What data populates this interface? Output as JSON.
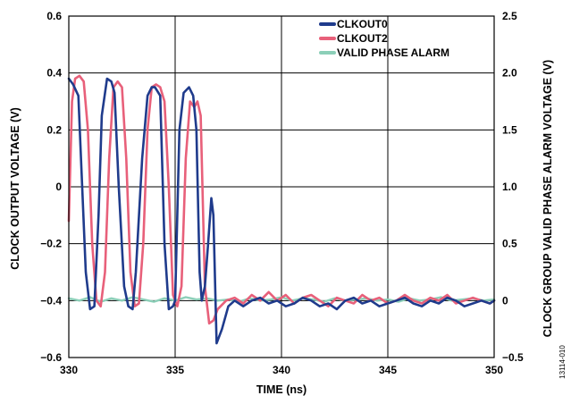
{
  "chart_data": {
    "type": "line",
    "xlabel": "TIME (ns)",
    "ylabel": "CLOCK OUTPUT VOLTAGE (V)",
    "y2label": "CLOCK GROUP VALID PHASE ALARM VOLTAGE (V)",
    "figure_id": "13114-010",
    "xlim": [
      330,
      350
    ],
    "ylim": [
      -0.6,
      0.6
    ],
    "y2lim": [
      -0.5,
      2.5
    ],
    "x_ticks": [
      "330",
      "335",
      "340",
      "345",
      "350"
    ],
    "y_ticks": [
      "0.6",
      "0.4",
      "0.2",
      "0",
      "−0.2",
      "−0.4",
      "−0.6"
    ],
    "y2_ticks": [
      "2.5",
      "2.0",
      "1.5",
      "1.0",
      "0.5",
      "0",
      "−0.5"
    ],
    "grid": true,
    "legend_position": "top-right",
    "series": [
      {
        "name": "CLKOUT0",
        "color": "#1f3b8c",
        "axis": "left",
        "x": [
          330.0,
          330.2,
          330.45,
          330.6,
          330.8,
          331.0,
          331.2,
          331.4,
          331.55,
          331.8,
          332.0,
          332.15,
          332.35,
          332.6,
          332.8,
          333.0,
          333.15,
          333.45,
          333.7,
          333.9,
          334.05,
          334.3,
          334.5,
          334.7,
          334.9,
          335.0,
          335.2,
          335.4,
          335.65,
          335.85,
          336.0,
          336.15,
          336.25,
          336.4,
          336.55,
          336.7,
          336.8,
          336.95,
          337.2,
          337.5,
          337.8,
          338.2,
          338.6,
          339.0,
          339.4,
          339.8,
          340.2,
          340.6,
          341.0,
          341.4,
          341.8,
          342.2,
          342.6,
          343.0,
          343.4,
          343.8,
          344.2,
          344.6,
          345.0,
          345.4,
          345.8,
          346.2,
          346.6,
          347.0,
          347.4,
          347.8,
          348.2,
          348.6,
          349.0,
          349.4,
          349.8,
          350.0
        ],
        "y": [
          0.38,
          0.36,
          0.32,
          0.05,
          -0.3,
          -0.43,
          -0.42,
          -0.1,
          0.25,
          0.38,
          0.37,
          0.33,
          0.0,
          -0.35,
          -0.42,
          -0.43,
          -0.3,
          0.1,
          0.32,
          0.35,
          0.35,
          0.32,
          -0.2,
          -0.43,
          -0.42,
          -0.4,
          0.2,
          0.33,
          0.35,
          0.32,
          0.2,
          -0.3,
          -0.4,
          -0.35,
          -0.2,
          -0.04,
          -0.1,
          -0.55,
          -0.5,
          -0.42,
          -0.4,
          -0.42,
          -0.4,
          -0.39,
          -0.41,
          -0.4,
          -0.42,
          -0.41,
          -0.39,
          -0.4,
          -0.42,
          -0.41,
          -0.43,
          -0.4,
          -0.39,
          -0.41,
          -0.4,
          -0.42,
          -0.41,
          -0.4,
          -0.39,
          -0.41,
          -0.42,
          -0.4,
          -0.41,
          -0.39,
          -0.4,
          -0.42,
          -0.41,
          -0.4,
          -0.41,
          -0.4
        ]
      },
      {
        "name": "CLKOUT2",
        "color": "#e8607a",
        "axis": "left",
        "x": [
          330.0,
          330.15,
          330.3,
          330.5,
          330.7,
          330.9,
          331.1,
          331.3,
          331.5,
          331.7,
          331.9,
          332.1,
          332.3,
          332.5,
          332.7,
          332.9,
          333.1,
          333.3,
          333.5,
          333.7,
          333.9,
          334.1,
          334.3,
          334.5,
          334.7,
          334.9,
          335.1,
          335.3,
          335.5,
          335.7,
          335.9,
          336.05,
          336.2,
          336.4,
          336.6,
          336.8,
          337.0,
          337.4,
          337.8,
          338.2,
          338.6,
          339.0,
          339.4,
          339.8,
          340.2,
          340.6,
          341.0,
          341.4,
          341.8,
          342.2,
          342.6,
          343.0,
          343.4,
          343.8,
          344.2,
          344.6,
          345.0,
          345.4,
          345.8,
          346.2,
          346.6,
          347.0,
          347.4,
          347.8,
          348.2,
          348.6,
          349.0,
          349.4,
          349.8,
          350.0
        ],
        "y": [
          -0.12,
          0.3,
          0.38,
          0.39,
          0.37,
          0.2,
          -0.2,
          -0.4,
          -0.42,
          -0.3,
          0.1,
          0.35,
          0.37,
          0.35,
          0.1,
          -0.3,
          -0.42,
          -0.41,
          -0.2,
          0.2,
          0.35,
          0.36,
          0.35,
          0.3,
          0.0,
          -0.38,
          -0.42,
          -0.35,
          0.1,
          0.3,
          0.28,
          0.3,
          0.25,
          -0.35,
          -0.48,
          -0.47,
          -0.43,
          -0.4,
          -0.39,
          -0.41,
          -0.38,
          -0.4,
          -0.37,
          -0.4,
          -0.38,
          -0.41,
          -0.39,
          -0.38,
          -0.4,
          -0.42,
          -0.39,
          -0.4,
          -0.41,
          -0.38,
          -0.4,
          -0.39,
          -0.41,
          -0.4,
          -0.38,
          -0.4,
          -0.41,
          -0.39,
          -0.4,
          -0.38,
          -0.41,
          -0.4,
          -0.39,
          -0.4,
          -0.41,
          -0.4
        ]
      },
      {
        "name": "VALID PHASE ALARM",
        "color": "#8ccfb8",
        "axis": "right",
        "x": [
          330.0,
          330.5,
          331.0,
          331.5,
          332.0,
          332.5,
          333.0,
          333.5,
          334.0,
          334.5,
          335.0,
          335.5,
          336.0,
          336.5,
          337.0,
          337.5,
          338.0,
          338.5,
          339.0,
          339.5,
          340.0,
          340.5,
          341.0,
          341.5,
          342.0,
          342.5,
          343.0,
          343.5,
          344.0,
          344.5,
          345.0,
          345.5,
          346.0,
          346.5,
          347.0,
          347.5,
          348.0,
          348.5,
          349.0,
          349.5,
          350.0
        ],
        "y": [
          0.02,
          0.0,
          0.03,
          -0.01,
          0.02,
          0.0,
          0.03,
          0.01,
          -0.01,
          0.02,
          0.0,
          0.03,
          0.01,
          0.02,
          0.0,
          0.01,
          -0.01,
          0.02,
          0.0,
          0.01,
          0.03,
          0.0,
          0.02,
          0.01,
          -0.01,
          0.02,
          0.0,
          0.01,
          0.02,
          0.0,
          0.01,
          -0.01,
          0.02,
          0.0,
          0.01,
          0.03,
          0.0,
          0.01,
          0.02,
          0.0,
          0.01
        ]
      }
    ]
  }
}
